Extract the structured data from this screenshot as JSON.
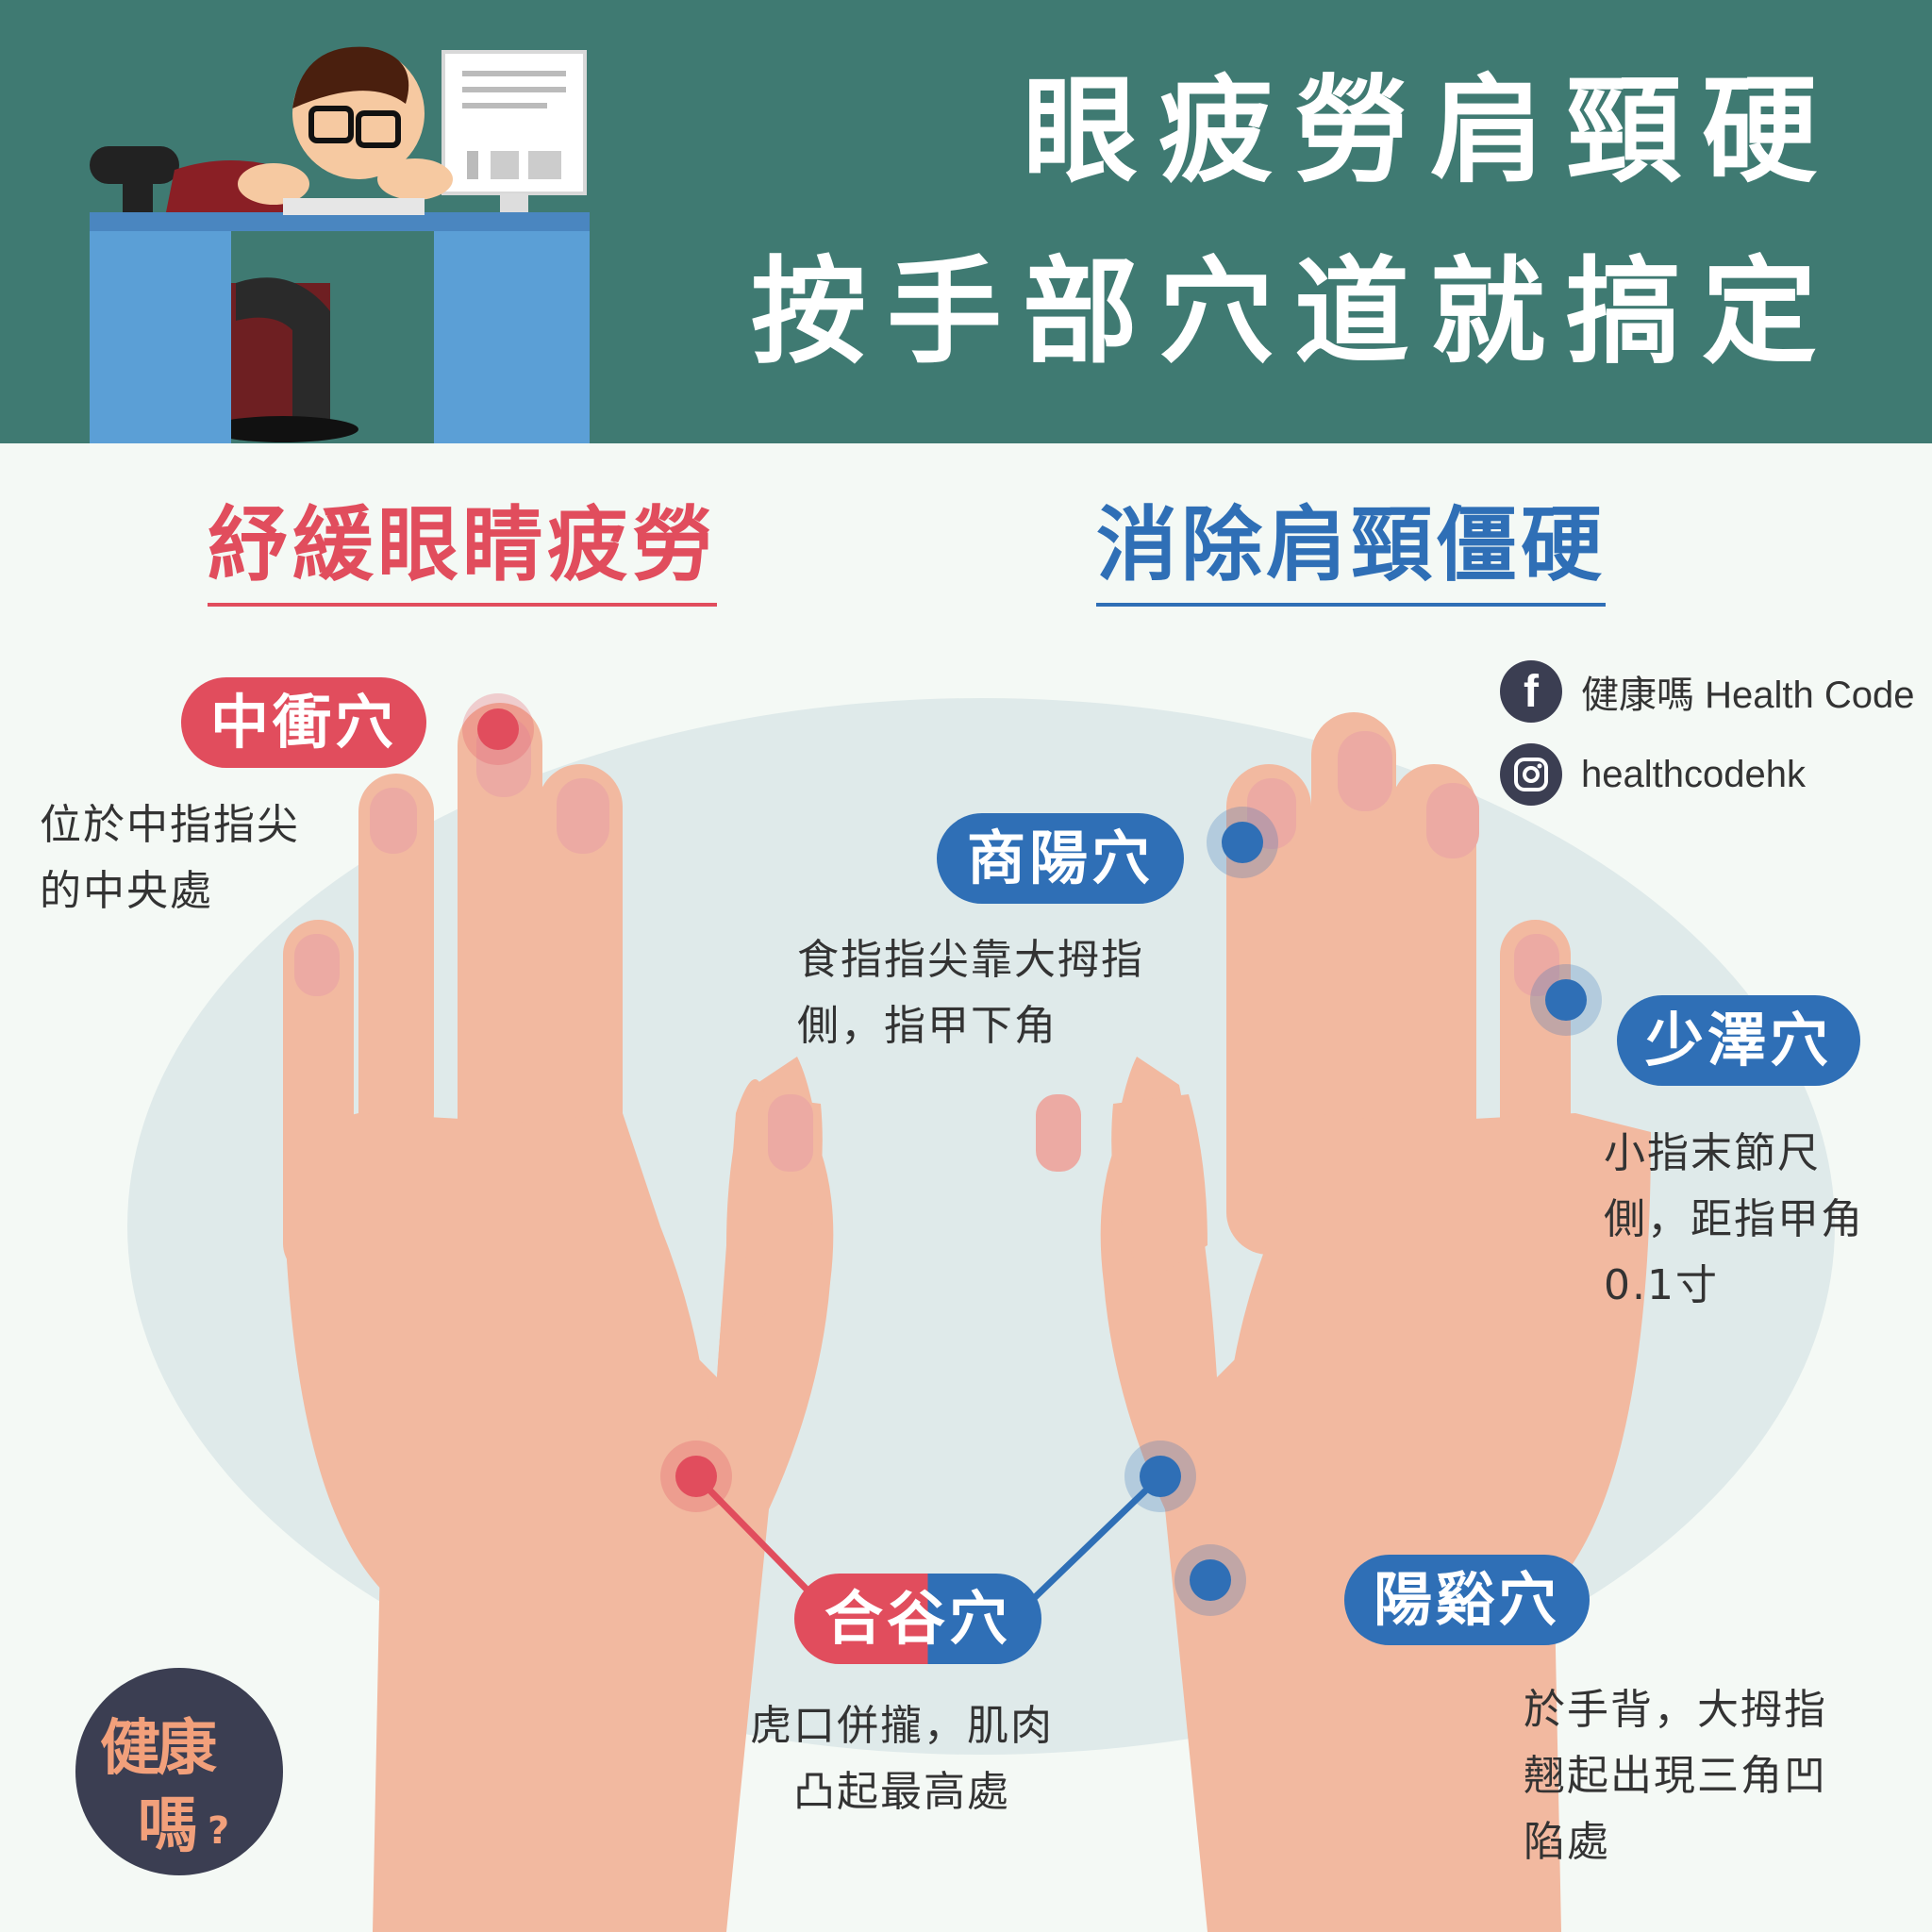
{
  "header": {
    "title_line1": "眼疲勞肩頸硬",
    "title_line2": "按手部穴道就搞定"
  },
  "sections": {
    "left_heading": "紓緩眼睛疲勞",
    "right_heading": "消除肩頸僵硬"
  },
  "social": {
    "facebook_label": "健康嗎 Health Code",
    "instagram_label": "healthcodehk",
    "facebook_icon": "facebook-icon",
    "instagram_icon": "instagram-icon"
  },
  "points": {
    "zhongchong": {
      "name": "中衝穴",
      "desc_line1": "位於中指指尖",
      "desc_line2": "的中央處"
    },
    "shangyang": {
      "name": "商陽穴",
      "desc_line1": "食指指尖靠大拇指",
      "desc_line2": "側，指甲下角"
    },
    "shaoze": {
      "name": "少澤穴",
      "desc_line1": "小指末節尺",
      "desc_line2": "側，距指甲角",
      "desc_line3": "0.1寸"
    },
    "hegu": {
      "name": "合谷穴",
      "desc_line1": "虎口併攏，肌肉",
      "desc_line2": "凸起最高處"
    },
    "yangxi": {
      "name": "陽谿穴",
      "desc_line1": "於手背，大拇指",
      "desc_line2": "翹起出現三角凹",
      "desc_line3": "陷處"
    }
  },
  "logo": {
    "line1": "健康",
    "line2": "嗎",
    "mark": "?"
  },
  "colors": {
    "header_bg": "#3f7a72",
    "eye_red": "#e14d5d",
    "neck_blue": "#2f6fb6",
    "skin": "#f2b9a0",
    "page_bg": "#f4f9f5"
  }
}
